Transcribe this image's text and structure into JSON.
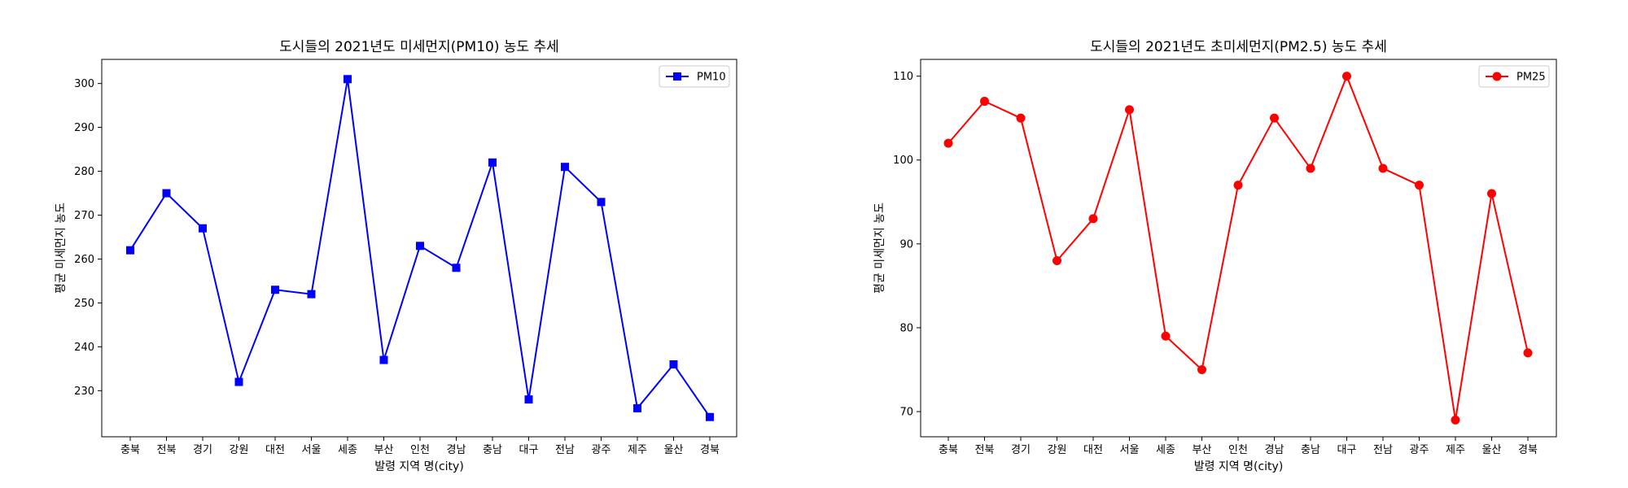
{
  "chart_data": [
    {
      "type": "line",
      "title": "도시들의 2021년도 미세먼지(PM10) 농도 추세",
      "xlabel": "발령 지역 명(city)",
      "ylabel": "평균 미세먼지 농도",
      "categories": [
        "충북",
        "전북",
        "경기",
        "강원",
        "대전",
        "서울",
        "세종",
        "부산",
        "인천",
        "경남",
        "충남",
        "대구",
        "전남",
        "광주",
        "제주",
        "울산",
        "경북"
      ],
      "series": [
        {
          "name": "PM10",
          "color": "#0000ff",
          "marker": "square",
          "values": [
            262,
            275,
            267,
            232,
            253,
            252,
            301,
            237,
            263,
            258,
            282,
            228,
            281,
            273,
            226,
            236,
            224
          ]
        }
      ],
      "ylim": [
        219.5,
        305.5
      ],
      "yticks": [
        230,
        240,
        250,
        260,
        270,
        280,
        290,
        300
      ],
      "grid": false,
      "legend_position": "top-right"
    },
    {
      "type": "line",
      "title": "도시들의 2021년도 초미세먼지(PM2.5) 농도 추세",
      "xlabel": "발령 지역 명(city)",
      "ylabel": "평균 미세먼지 농도",
      "categories": [
        "충북",
        "전북",
        "경기",
        "강원",
        "대전",
        "서울",
        "세종",
        "부산",
        "인천",
        "경남",
        "충남",
        "대구",
        "전남",
        "광주",
        "제주",
        "울산",
        "경북"
      ],
      "series": [
        {
          "name": "PM25",
          "color": "#ff0000",
          "marker": "circle",
          "values": [
            102,
            107,
            105,
            88,
            93,
            106,
            79,
            75,
            97,
            105,
            99,
            110,
            99,
            97,
            69,
            96,
            77
          ]
        }
      ],
      "ylim": [
        67.0,
        112.0
      ],
      "yticks": [
        70,
        80,
        90,
        100,
        110
      ],
      "grid": false,
      "legend_position": "top-right"
    }
  ]
}
